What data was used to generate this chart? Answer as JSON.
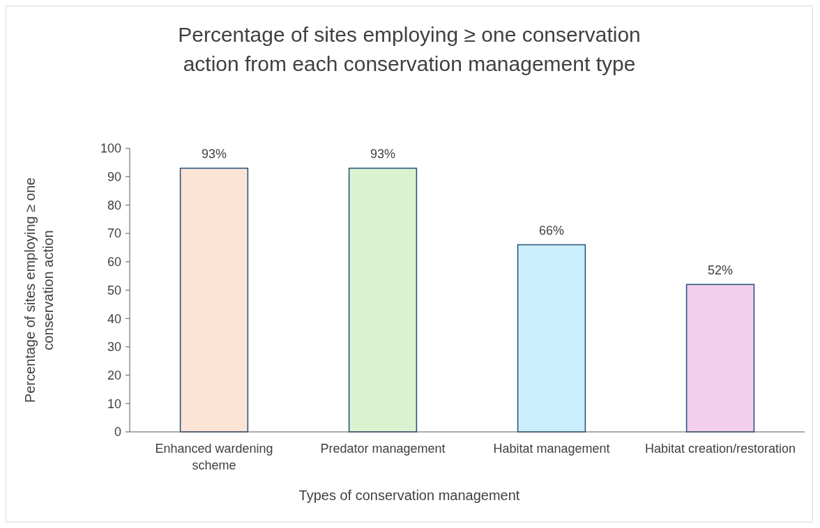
{
  "chart_data": {
    "type": "bar",
    "title": "Percentage of sites employing ≥ one conservation action from each conservation management type",
    "xlabel": "Types of conservation management",
    "ylabel": "Percentage of sites employing ≥ one conservation action",
    "categories": [
      "Enhanced wardening scheme",
      "Predator management",
      "Habitat management",
      "Habitat creation/restoration"
    ],
    "values": [
      93,
      93,
      66,
      52
    ],
    "value_labels": [
      "93%",
      "93%",
      "66%",
      "52%"
    ],
    "colors": [
      "#fbe3d6",
      "#d9f2d0",
      "#caeefb",
      "#f2cfee"
    ],
    "ylim": [
      0,
      100
    ],
    "yticks": [
      0,
      10,
      20,
      30,
      40,
      50,
      60,
      70,
      80,
      90,
      100
    ],
    "grid": false
  }
}
